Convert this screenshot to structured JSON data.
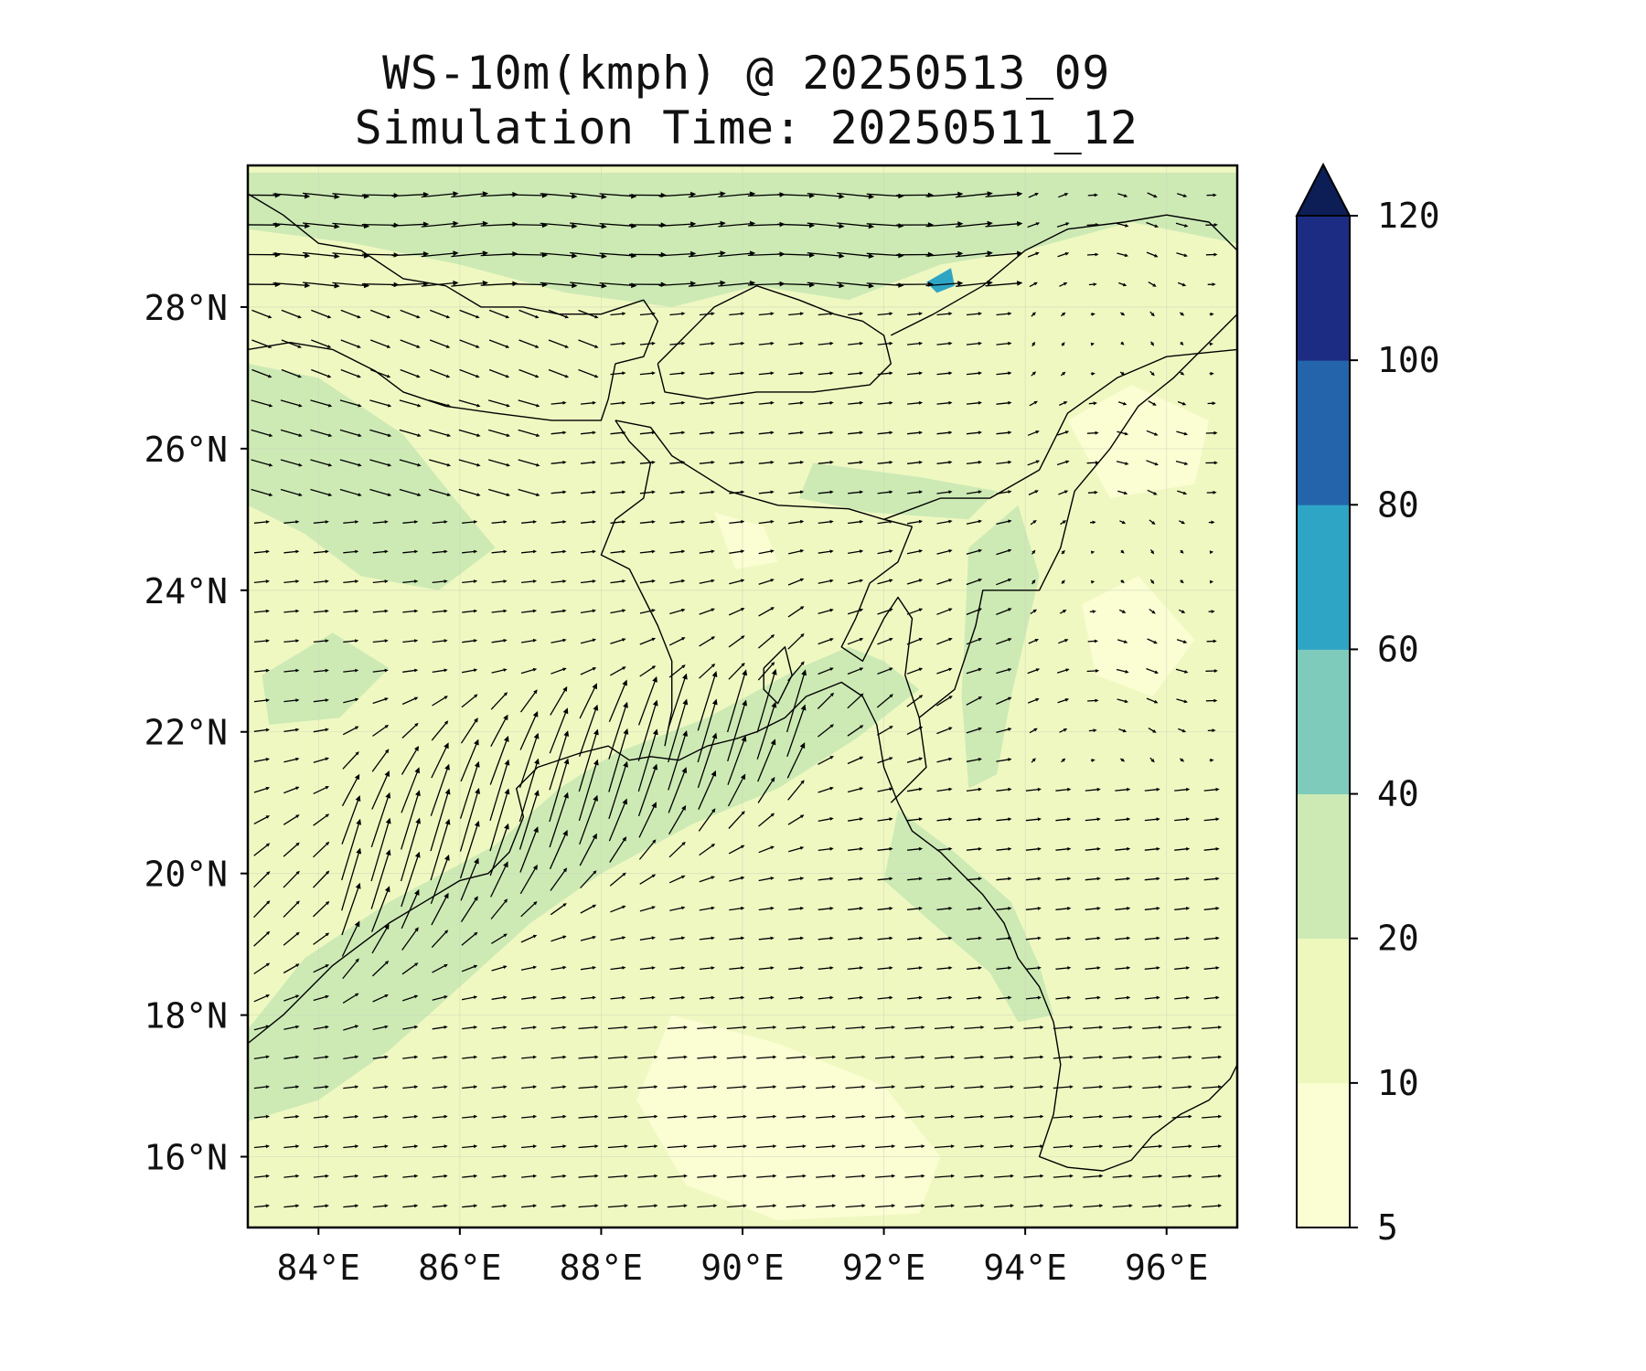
{
  "title": {
    "line1": "WS-10m(kmph) @ 20250513_09",
    "line2": "Simulation Time: 20250511_12"
  },
  "map": {
    "lon_range": [
      83.0,
      97.0
    ],
    "lat_range": [
      15.0,
      30.0
    ],
    "lon_ticks": [
      {
        "value": 84,
        "label": "84°E"
      },
      {
        "value": 86,
        "label": "86°E"
      },
      {
        "value": 88,
        "label": "88°E"
      },
      {
        "value": 90,
        "label": "90°E"
      },
      {
        "value": 92,
        "label": "92°E"
      },
      {
        "value": 94,
        "label": "94°E"
      },
      {
        "value": 96,
        "label": "96°E"
      }
    ],
    "lat_ticks": [
      {
        "value": 16,
        "label": "16°N"
      },
      {
        "value": 18,
        "label": "18°N"
      },
      {
        "value": 20,
        "label": "20°N"
      },
      {
        "value": 22,
        "label": "22°N"
      },
      {
        "value": 24,
        "label": "24°N"
      },
      {
        "value": 26,
        "label": "26°N"
      },
      {
        "value": 28,
        "label": "28°N"
      }
    ],
    "gridlines": true,
    "background_color": "#f0f8c2",
    "field_zones": [
      {
        "name": "bay-jet",
        "level": 20,
        "polygon": [
          [
            83.0,
            17.8
          ],
          [
            83.8,
            18.8
          ],
          [
            85.0,
            19.6
          ],
          [
            86.5,
            20.4
          ],
          [
            87.4,
            21.2
          ],
          [
            88.2,
            21.7
          ],
          [
            89.5,
            22.2
          ],
          [
            90.8,
            22.9
          ],
          [
            91.5,
            23.2
          ],
          [
            92.0,
            23.0
          ],
          [
            92.5,
            22.6
          ],
          [
            91.6,
            21.9
          ],
          [
            90.5,
            21.2
          ],
          [
            89.3,
            20.7
          ],
          [
            88.0,
            20.0
          ],
          [
            87.0,
            19.3
          ],
          [
            86.0,
            18.4
          ],
          [
            85.0,
            17.5
          ],
          [
            84.0,
            16.8
          ],
          [
            83.0,
            16.5
          ]
        ]
      },
      {
        "name": "north-band",
        "level": 20,
        "polygon": [
          [
            83.0,
            29.9
          ],
          [
            97.0,
            29.9
          ],
          [
            97.0,
            28.9
          ],
          [
            95.5,
            29.2
          ],
          [
            94.0,
            28.8
          ],
          [
            92.8,
            28.6
          ],
          [
            91.5,
            28.1
          ],
          [
            90.2,
            28.3
          ],
          [
            89.0,
            28.0
          ],
          [
            87.5,
            28.2
          ],
          [
            86.0,
            28.6
          ],
          [
            84.5,
            28.9
          ],
          [
            83.0,
            29.1
          ]
        ]
      },
      {
        "name": "west-plains",
        "level": 20,
        "polygon": [
          [
            83.0,
            27.2
          ],
          [
            84.0,
            27.0
          ],
          [
            85.2,
            26.2
          ],
          [
            86.0,
            25.2
          ],
          [
            86.5,
            24.6
          ],
          [
            85.7,
            24.0
          ],
          [
            84.6,
            24.2
          ],
          [
            83.8,
            24.8
          ],
          [
            83.0,
            25.2
          ]
        ]
      },
      {
        "name": "myanmar-coast",
        "level": 20,
        "polygon": [
          [
            92.2,
            20.9
          ],
          [
            93.0,
            20.3
          ],
          [
            93.8,
            19.6
          ],
          [
            94.2,
            18.7
          ],
          [
            94.4,
            18.0
          ],
          [
            93.9,
            17.9
          ],
          [
            93.5,
            18.6
          ],
          [
            92.8,
            19.2
          ],
          [
            92.0,
            19.9
          ]
        ]
      },
      {
        "name": "arakan-strip",
        "level": 20,
        "polygon": [
          [
            93.2,
            24.6
          ],
          [
            93.9,
            25.2
          ],
          [
            94.2,
            24.2
          ],
          [
            93.8,
            22.5
          ],
          [
            93.6,
            21.4
          ],
          [
            93.2,
            21.2
          ],
          [
            93.1,
            22.5
          ]
        ]
      },
      {
        "name": "assam-strip",
        "level": 20,
        "polygon": [
          [
            91.0,
            25.8
          ],
          [
            92.5,
            25.6
          ],
          [
            93.6,
            25.4
          ],
          [
            93.2,
            25.0
          ],
          [
            91.8,
            25.1
          ],
          [
            90.8,
            25.3
          ]
        ]
      },
      {
        "name": "sw-patch",
        "level": 20,
        "polygon": [
          [
            83.2,
            22.8
          ],
          [
            84.2,
            23.4
          ],
          [
            85.0,
            22.9
          ],
          [
            84.3,
            22.2
          ],
          [
            83.3,
            22.1
          ]
        ]
      },
      {
        "name": "bay-light",
        "level": 5,
        "polygon": [
          [
            89.0,
            18.0
          ],
          [
            90.5,
            17.6
          ],
          [
            92.0,
            17.0
          ],
          [
            92.8,
            16.0
          ],
          [
            92.5,
            15.2
          ],
          [
            90.5,
            15.1
          ],
          [
            89.2,
            15.6
          ],
          [
            88.5,
            16.8
          ]
        ]
      },
      {
        "name": "assam-light",
        "level": 5,
        "polygon": [
          [
            94.6,
            26.4
          ],
          [
            95.5,
            26.9
          ],
          [
            96.6,
            26.4
          ],
          [
            96.4,
            25.5
          ],
          [
            95.2,
            25.3
          ]
        ]
      },
      {
        "name": "east-light",
        "level": 5,
        "polygon": [
          [
            94.8,
            23.8
          ],
          [
            95.6,
            24.2
          ],
          [
            96.4,
            23.3
          ],
          [
            95.8,
            22.5
          ],
          [
            95.0,
            22.8
          ]
        ]
      },
      {
        "name": "bengal-light",
        "level": 5,
        "polygon": [
          [
            89.6,
            25.1
          ],
          [
            90.3,
            24.9
          ],
          [
            90.5,
            24.4
          ],
          [
            89.9,
            24.3
          ]
        ]
      },
      {
        "name": "lake",
        "level": 60,
        "polygon": [
          [
            92.6,
            28.35
          ],
          [
            92.95,
            28.55
          ],
          [
            93.0,
            28.3
          ],
          [
            92.75,
            28.2
          ]
        ]
      }
    ],
    "boundaries": [
      {
        "name": "east-india-coast",
        "lonlat": [
          [
            83.0,
            17.6
          ],
          [
            83.5,
            18.0
          ],
          [
            84.2,
            18.7
          ],
          [
            85.0,
            19.3
          ],
          [
            85.5,
            19.6
          ],
          [
            86.0,
            19.9
          ],
          [
            86.4,
            20.0
          ],
          [
            86.7,
            20.3
          ],
          [
            86.9,
            20.8
          ],
          [
            86.8,
            21.2
          ],
          [
            87.1,
            21.5
          ],
          [
            87.7,
            21.7
          ],
          [
            88.1,
            21.8
          ],
          [
            88.4,
            21.6
          ],
          [
            88.7,
            21.65
          ],
          [
            89.1,
            21.6
          ],
          [
            89.5,
            21.8
          ],
          [
            89.9,
            21.9
          ],
          [
            90.2,
            22.0
          ],
          [
            90.6,
            22.2
          ],
          [
            90.9,
            22.5
          ],
          [
            91.4,
            22.7
          ],
          [
            91.7,
            22.5
          ],
          [
            91.9,
            22.1
          ],
          [
            92.0,
            21.5
          ],
          [
            92.2,
            21.0
          ],
          [
            92.4,
            20.6
          ],
          [
            92.8,
            20.3
          ],
          [
            93.1,
            20.0
          ],
          [
            93.4,
            19.7
          ],
          [
            93.7,
            19.3
          ],
          [
            93.9,
            18.8
          ],
          [
            94.2,
            18.4
          ],
          [
            94.4,
            17.9
          ],
          [
            94.5,
            17.3
          ],
          [
            94.4,
            16.6
          ],
          [
            94.2,
            16.0
          ],
          [
            94.6,
            15.85
          ],
          [
            95.1,
            15.8
          ],
          [
            95.5,
            15.95
          ],
          [
            95.8,
            16.3
          ],
          [
            96.2,
            16.6
          ],
          [
            96.6,
            16.8
          ],
          [
            96.9,
            17.1
          ],
          [
            97.0,
            17.3
          ]
        ]
      },
      {
        "name": "ganges-delta-islands",
        "lonlat": [
          [
            90.3,
            22.9
          ],
          [
            90.6,
            23.2
          ],
          [
            90.7,
            22.8
          ],
          [
            90.5,
            22.4
          ],
          [
            90.3,
            22.6
          ],
          [
            90.3,
            22.9
          ]
        ]
      },
      {
        "name": "nepal-south-border",
        "lonlat": [
          [
            83.0,
            27.4
          ],
          [
            83.6,
            27.5
          ],
          [
            84.2,
            27.4
          ],
          [
            84.8,
            27.1
          ],
          [
            85.2,
            26.8
          ],
          [
            85.8,
            26.6
          ],
          [
            86.5,
            26.5
          ],
          [
            87.3,
            26.4
          ],
          [
            88.0,
            26.4
          ],
          [
            88.1,
            26.7
          ],
          [
            88.2,
            27.2
          ]
        ]
      },
      {
        "name": "nepal-china-border",
        "lonlat": [
          [
            83.0,
            29.6
          ],
          [
            83.5,
            29.3
          ],
          [
            84.0,
            28.9
          ],
          [
            84.6,
            28.8
          ],
          [
            85.2,
            28.4
          ],
          [
            85.8,
            28.3
          ],
          [
            86.3,
            28.0
          ],
          [
            86.9,
            28.0
          ],
          [
            87.4,
            27.9
          ],
          [
            88.0,
            27.9
          ],
          [
            88.6,
            28.1
          ]
        ]
      },
      {
        "name": "sikkim-border",
        "lonlat": [
          [
            88.2,
            27.2
          ],
          [
            88.6,
            27.3
          ],
          [
            88.8,
            27.8
          ],
          [
            88.6,
            28.1
          ]
        ]
      },
      {
        "name": "bhutan-border",
        "lonlat": [
          [
            88.8,
            27.2
          ],
          [
            89.2,
            27.6
          ],
          [
            89.6,
            28.0
          ],
          [
            90.2,
            28.3
          ],
          [
            90.8,
            28.1
          ],
          [
            91.3,
            27.9
          ],
          [
            91.7,
            27.8
          ],
          [
            92.0,
            27.6
          ],
          [
            92.1,
            27.2
          ],
          [
            91.8,
            26.9
          ],
          [
            91.0,
            26.8
          ],
          [
            90.2,
            26.8
          ],
          [
            89.5,
            26.7
          ],
          [
            88.9,
            26.8
          ],
          [
            88.8,
            27.2
          ]
        ]
      },
      {
        "name": "arunachal-mcmahon",
        "lonlat": [
          [
            92.1,
            27.6
          ],
          [
            92.7,
            27.9
          ],
          [
            93.4,
            28.3
          ],
          [
            94.0,
            28.8
          ],
          [
            94.6,
            29.1
          ],
          [
            95.4,
            29.2
          ],
          [
            96.0,
            29.3
          ],
          [
            96.6,
            29.2
          ],
          [
            97.0,
            28.8
          ]
        ]
      },
      {
        "name": "bangladesh-west",
        "lonlat": [
          [
            88.9,
            21.8
          ],
          [
            89.0,
            22.3
          ],
          [
            89.0,
            23.0
          ],
          [
            88.8,
            23.5
          ],
          [
            88.6,
            23.9
          ],
          [
            88.4,
            24.3
          ],
          [
            88.0,
            24.5
          ],
          [
            88.2,
            25.0
          ],
          [
            88.6,
            25.3
          ],
          [
            88.7,
            25.8
          ],
          [
            88.4,
            26.1
          ],
          [
            88.2,
            26.4
          ]
        ]
      },
      {
        "name": "bangladesh-north",
        "lonlat": [
          [
            88.2,
            26.4
          ],
          [
            88.7,
            26.3
          ],
          [
            89.0,
            25.9
          ],
          [
            89.8,
            25.4
          ],
          [
            90.5,
            25.2
          ],
          [
            91.5,
            25.15
          ],
          [
            92.0,
            25.0
          ],
          [
            92.4,
            24.9
          ]
        ]
      },
      {
        "name": "bangladesh-east",
        "lonlat": [
          [
            92.4,
            24.9
          ],
          [
            92.2,
            24.4
          ],
          [
            91.8,
            24.1
          ],
          [
            91.6,
            23.6
          ],
          [
            91.4,
            23.2
          ],
          [
            91.7,
            23.0
          ],
          [
            92.0,
            23.6
          ],
          [
            92.2,
            23.9
          ],
          [
            92.4,
            23.6
          ],
          [
            92.3,
            22.8
          ],
          [
            92.5,
            22.2
          ],
          [
            92.6,
            21.5
          ],
          [
            92.3,
            21.2
          ],
          [
            92.1,
            21.0
          ]
        ]
      },
      {
        "name": "assam-south-boundary",
        "lonlat": [
          [
            92.0,
            25.0
          ],
          [
            92.8,
            25.3
          ],
          [
            93.5,
            25.3
          ],
          [
            94.2,
            25.7
          ],
          [
            94.6,
            26.5
          ],
          [
            95.3,
            27.0
          ],
          [
            96.0,
            27.3
          ],
          [
            97.0,
            27.4
          ]
        ]
      },
      {
        "name": "mizoram-manipur-border",
        "lonlat": [
          [
            92.5,
            22.2
          ],
          [
            93.0,
            22.6
          ],
          [
            93.3,
            23.5
          ],
          [
            93.4,
            24.0
          ],
          [
            94.2,
            24.0
          ],
          [
            94.5,
            24.6
          ],
          [
            94.7,
            25.4
          ],
          [
            95.2,
            26.0
          ],
          [
            95.6,
            26.6
          ],
          [
            96.1,
            27.0
          ],
          [
            96.6,
            27.5
          ],
          [
            97.0,
            27.9
          ]
        ]
      }
    ],
    "wind_field": {
      "grid_lon_start": 83.2,
      "grid_lon_end": 96.8,
      "grid_lon_step": 0.42,
      "grid_lat_start": 15.3,
      "grid_lat_end": 29.7,
      "grid_lat_step": 0.42
    }
  },
  "colorbar": {
    "levels": [
      5,
      10,
      20,
      40,
      60,
      80,
      100,
      120
    ],
    "tick_labels": [
      "5",
      "10",
      "20",
      "40",
      "60",
      "80",
      "100",
      "120"
    ],
    "colors": [
      "#fbfdd3",
      "#eef8bd",
      "#cdeab5",
      "#7ecbbb",
      "#2fa5c5",
      "#2364ab",
      "#1d2c83"
    ],
    "extend_color": "#0d1e56",
    "extend": "max"
  }
}
